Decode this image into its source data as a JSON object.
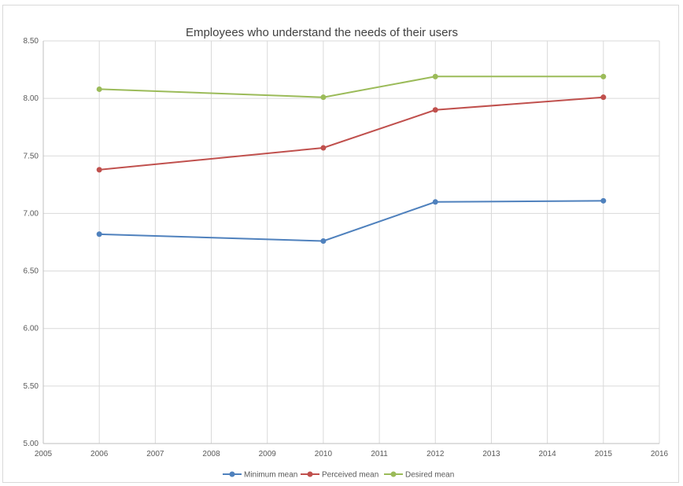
{
  "chart_data": {
    "type": "line",
    "title": "Employees who understand the needs of their users",
    "xlabel": "",
    "ylabel": "",
    "xlim": [
      2005,
      2016
    ],
    "ylim": [
      5.0,
      8.5
    ],
    "x_ticks": [
      "2005",
      "2006",
      "2007",
      "2008",
      "2009",
      "2010",
      "2011",
      "2012",
      "2013",
      "2014",
      "2015",
      "2016"
    ],
    "y_ticks": [
      "5.00",
      "5.50",
      "6.00",
      "6.50",
      "7.00",
      "7.50",
      "8.00",
      "8.50"
    ],
    "grid": true,
    "legend_position": "bottom",
    "x": [
      2006,
      2010,
      2012,
      2015
    ],
    "series": [
      {
        "name": "Minimum mean",
        "color": "#4f81bd",
        "values": [
          6.82,
          6.76,
          7.1,
          7.11
        ]
      },
      {
        "name": "Perceived mean",
        "color": "#c0504d",
        "values": [
          7.38,
          7.57,
          7.9,
          8.01
        ]
      },
      {
        "name": "Desired mean",
        "color": "#9bbb59",
        "values": [
          8.08,
          8.01,
          8.19,
          8.19
        ]
      }
    ]
  }
}
